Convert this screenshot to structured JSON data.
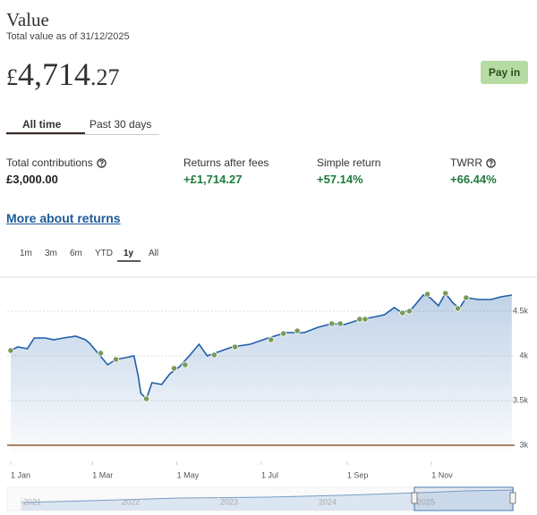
{
  "header": {
    "title": "Value",
    "subtitle": "Total value as of 31/12/2025"
  },
  "amount": {
    "currency": "£",
    "whole": "4,714",
    "decimals": ".27"
  },
  "pay_in": "Pay in",
  "tabs": {
    "items": [
      "All time",
      "Past 30 days"
    ],
    "active": 0
  },
  "stats": [
    {
      "label": "Total contributions",
      "value": "£3,000.00",
      "info": true,
      "color": "#222222"
    },
    {
      "label": "Returns after fees",
      "value": "+£1,714.27",
      "info": false,
      "color": "#1e7a3c"
    },
    {
      "label": "Simple return",
      "value": "+57.14%",
      "info": false,
      "color": "#1e7a3c"
    },
    {
      "label": "TWRR",
      "value": "+66.44%",
      "info": true,
      "color": "#1e7a3c"
    }
  ],
  "more_link": "More about returns",
  "ranges": {
    "items": [
      "1m",
      "3m",
      "6m",
      "YTD",
      "1y",
      "All"
    ],
    "active": 4
  },
  "chart": {
    "type": "line",
    "color": "#1f5fa8",
    "event_color": "#7a9a5a",
    "baseline_color": "#8a5a3a",
    "x": [
      0,
      5,
      12,
      17,
      25,
      31,
      38,
      47,
      54,
      57,
      63,
      70,
      76,
      83,
      89,
      92,
      94,
      98,
      102,
      109,
      115,
      122,
      129,
      136,
      142,
      151,
      160,
      173,
      186,
      199,
      212,
      222,
      232,
      241,
      251,
      261,
      270,
      277,
      283,
      290,
      298,
      303,
      309,
      314,
      319,
      324,
      329,
      338,
      347,
      354,
      362
    ],
    "values": [
      4060,
      4100,
      4080,
      4200,
      4200,
      4180,
      4200,
      4220,
      4180,
      4140,
      4030,
      3900,
      3960,
      3980,
      4000,
      3780,
      3580,
      3520,
      3700,
      3680,
      3800,
      3880,
      4000,
      4130,
      4000,
      4050,
      4100,
      4130,
      4200,
      4260,
      4260,
      4320,
      4360,
      4350,
      4400,
      4430,
      4460,
      4540,
      4480,
      4530,
      4680,
      4650,
      4560,
      4700,
      4600,
      4530,
      4650,
      4630,
      4630,
      4660,
      4680
    ],
    "events": {
      "x": [
        0,
        65,
        76,
        98,
        118,
        126,
        147,
        162,
        188,
        197,
        207,
        232,
        238,
        252,
        256,
        283,
        288,
        301,
        314,
        323,
        329
      ],
      "values": [
        4060,
        4030,
        3960,
        3520,
        3860,
        3900,
        4010,
        4100,
        4180,
        4250,
        4280,
        4360,
        4360,
        4410,
        4410,
        4480,
        4500,
        4690,
        4700,
        4530,
        4650
      ]
    },
    "baseline": 3000,
    "xlim": [
      0,
      364
    ],
    "ylim": [
      2920,
      4860
    ],
    "xticks": [
      {
        "value": 0,
        "label": "1 Jan"
      },
      {
        "value": 59,
        "label": "1 Mar"
      },
      {
        "value": 120,
        "label": "1 May"
      },
      {
        "value": 181,
        "label": "1 Jul"
      },
      {
        "value": 243,
        "label": "1 Sep"
      },
      {
        "value": 304,
        "label": "1 Nov"
      }
    ],
    "yticks": [
      {
        "value": 3000,
        "label": "3k"
      },
      {
        "value": 3500,
        "label": "3.5k"
      },
      {
        "value": 4000,
        "label": "4k"
      },
      {
        "value": 4500,
        "label": "4.5k"
      }
    ],
    "grid": true,
    "navigator_labels": [
      "2021",
      "2022",
      "2023",
      "2024",
      "2025"
    ]
  }
}
